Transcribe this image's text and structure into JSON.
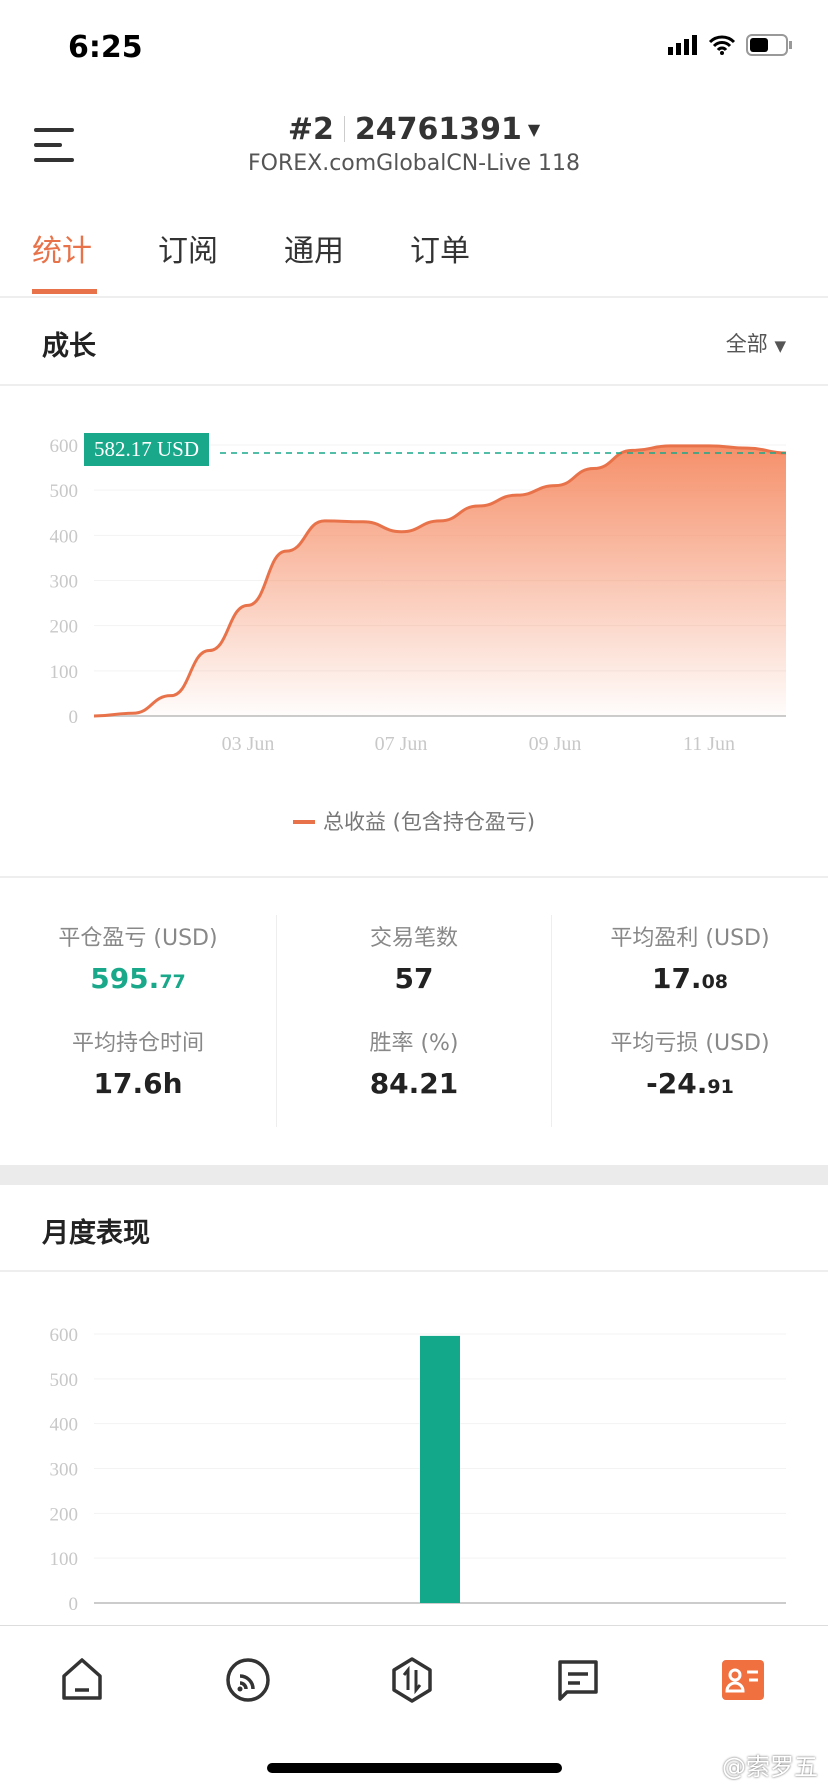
{
  "status_bar": {
    "time": "6:25"
  },
  "header": {
    "account_index": "#2",
    "account_number": "24761391",
    "server": "FOREX.comGlobalCN-Live 118"
  },
  "tabs": [
    {
      "label": "统计",
      "active": true
    },
    {
      "label": "订阅"
    },
    {
      "label": "通用"
    },
    {
      "label": "订单"
    }
  ],
  "growth": {
    "title": "成长",
    "filter": "全部",
    "current_label": "582.17 USD",
    "legend": "总收益 (包含持仓盈亏)"
  },
  "stats": [
    {
      "label": "平仓盈亏 (USD)",
      "main": "595.",
      "small": "77",
      "color": "#1AA88A"
    },
    {
      "label": "交易笔数",
      "main": "57",
      "small": ""
    },
    {
      "label": "平均盈利 (USD)",
      "main": "17.",
      "small": "08"
    },
    {
      "label": "平均持仓时间",
      "main": "17.6h",
      "small": ""
    },
    {
      "label": "胜率 (%)",
      "main": "84.21",
      "small": ""
    },
    {
      "label": "平均亏损 (USD)",
      "main": "-24.",
      "small": "91"
    }
  ],
  "monthly": {
    "title": "月度表现"
  },
  "watermark": "@索罗五",
  "colors": {
    "accent": "#E8734A",
    "positive": "#1AA88A"
  },
  "nav": [
    "home-icon",
    "feed-icon",
    "trade-icon",
    "message-icon",
    "profile-card-icon"
  ],
  "chart_data": [
    {
      "type": "area",
      "title": "",
      "series": [
        {
          "name": "总收益 (包含持仓盈亏)",
          "values": [
            0,
            6,
            45,
            145,
            245,
            365,
            432,
            430,
            408,
            432,
            465,
            489,
            510,
            548,
            588,
            598,
            598,
            593,
            582.17
          ]
        }
      ],
      "x_ticks": [
        "03 Jun",
        "07 Jun",
        "09 Jun",
        "11 Jun"
      ],
      "y_ticks": [
        0,
        100,
        200,
        300,
        400,
        500,
        600
      ],
      "ylim": [
        0,
        600
      ],
      "grid": true,
      "legend": "bottom",
      "current_value": 582.17
    },
    {
      "type": "bar",
      "title": "",
      "values": [
        595.77
      ],
      "y_ticks": [
        0,
        100,
        200,
        300,
        400,
        500,
        600
      ],
      "ylim": [
        0,
        600
      ],
      "grid": true
    }
  ]
}
